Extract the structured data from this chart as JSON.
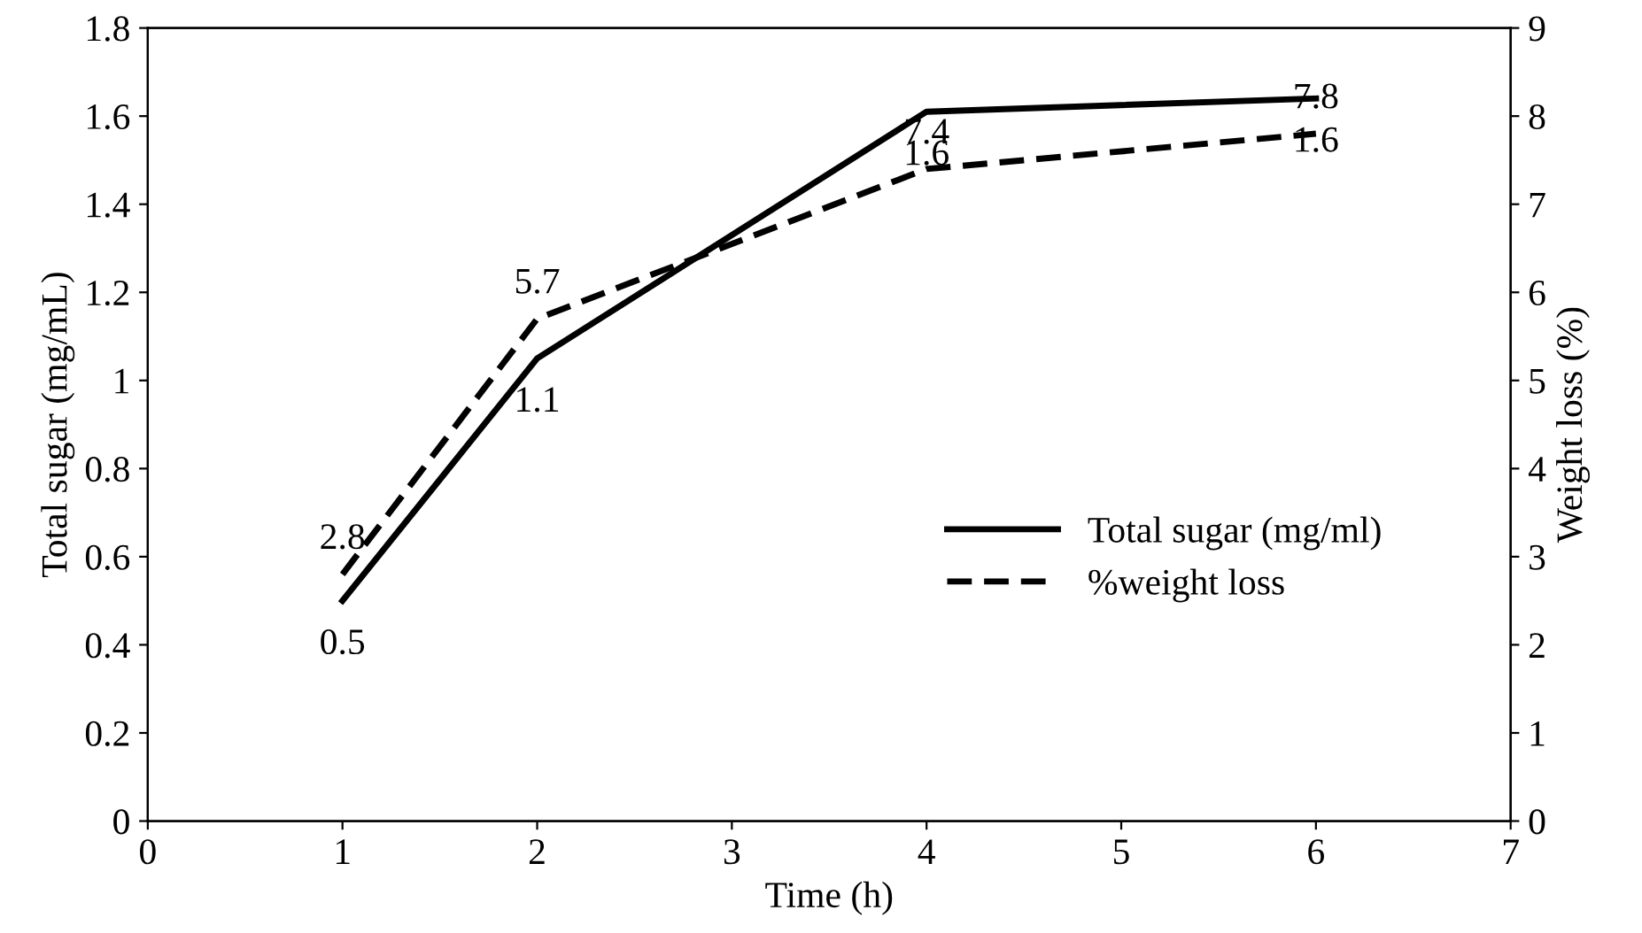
{
  "chart_data": {
    "type": "line",
    "xlabel": "Time (h)",
    "ylabel": "Total sugar (mg/mL)",
    "y2label": "Weight loss (%)",
    "x": [
      1,
      2,
      4,
      6
    ],
    "series": [
      {
        "name": "Total sugar (mg/ml)",
        "color": "#000000",
        "line_style": "solid",
        "values": [
          0.5,
          1.05,
          1.61,
          1.64
        ],
        "value_labels": [
          "0.5",
          "1.1",
          "1.6",
          "1.6"
        ]
      },
      {
        "name": "%weight loss",
        "color": "#000000",
        "line_style": "dashed",
        "axis": "y2",
        "values": [
          2.8,
          5.7,
          7.4,
          7.8
        ],
        "value_labels": [
          "2.8",
          "5.7",
          "7.4",
          "7.8"
        ]
      }
    ],
    "xlim": [
      0,
      7
    ],
    "xticks": [
      0,
      1,
      2,
      3,
      4,
      5,
      6,
      7
    ],
    "ylim": [
      0,
      1.8
    ],
    "yticks": [
      0,
      0.2,
      0.4,
      0.6,
      0.8,
      1,
      1.2,
      1.4,
      1.6,
      1.8
    ],
    "y2lim": [
      0,
      9
    ],
    "y2ticks": [
      0,
      1,
      2,
      3,
      4,
      5,
      6,
      7,
      8,
      9
    ],
    "grid": false,
    "legend": "right"
  }
}
